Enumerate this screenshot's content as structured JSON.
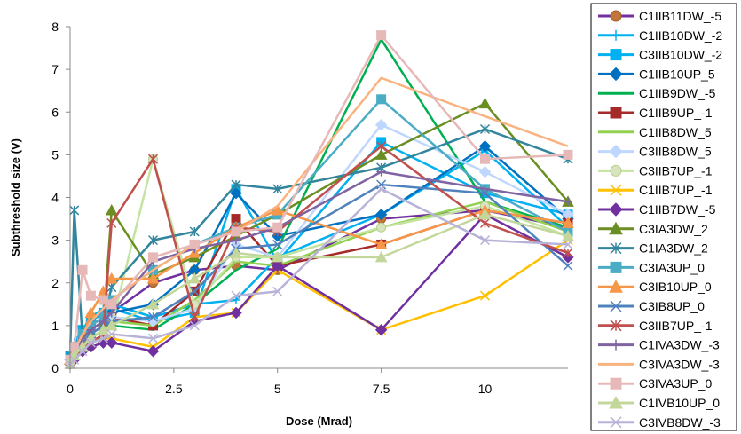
{
  "chart_data": {
    "type": "line",
    "title": "",
    "xlabel": "Dose (Mrad)",
    "ylabel": "Subthreshold size (V)",
    "xlim": [
      0,
      12
    ],
    "ylim": [
      0,
      8
    ],
    "xticks": [
      0,
      2.5,
      5,
      7.5,
      10
    ],
    "xtick_labels": [
      "0",
      "2.5",
      "5",
      "7.5",
      "10"
    ],
    "yticks": [
      0,
      1,
      2,
      3,
      4,
      5,
      6,
      7,
      8
    ],
    "ytick_labels": [
      "0",
      "1",
      "2",
      "3",
      "4",
      "5",
      "6",
      "7",
      "8"
    ],
    "grid": false,
    "legend_position": "right",
    "series": [
      {
        "name": "C1IIB11DW_-5",
        "color": "#7030A0",
        "marker": "circle-orange",
        "x": [
          0,
          0.1,
          0.3,
          0.5,
          0.8,
          1,
          2,
          3,
          4,
          5,
          7.5,
          10,
          12
        ],
        "y": [
          0.3,
          0.5,
          0.8,
          1.0,
          1.2,
          1.3,
          2.0,
          2.3,
          2.4,
          2.3,
          3.5,
          3.7,
          3.3
        ]
      },
      {
        "name": "C1IIB10DW_-2",
        "color": "#00B0F0",
        "marker": "plus",
        "x": [
          0,
          0.1,
          0.3,
          0.5,
          0.8,
          1,
          2,
          3,
          4,
          5,
          7.5,
          10,
          12
        ],
        "y": [
          0.4,
          0.6,
          0.9,
          1.2,
          1.4,
          1.5,
          1.2,
          1.5,
          1.6,
          2.6,
          3.6,
          5.1,
          3.3
        ]
      },
      {
        "name": "C3IIB10DW_-2",
        "color": "#00B0F0",
        "marker": "square",
        "x": [
          0,
          0.1,
          0.3,
          0.5,
          0.8,
          1,
          2,
          3,
          4,
          5,
          7.5,
          10,
          12
        ],
        "y": [
          0.3,
          0.5,
          0.9,
          1.1,
          1.3,
          1.4,
          1.1,
          1.3,
          4.2,
          2.5,
          5.3,
          4.1,
          3.6
        ]
      },
      {
        "name": "C1IIB10UP_5",
        "color": "#0070C0",
        "marker": "diamond",
        "x": [
          0,
          0.1,
          0.3,
          0.5,
          0.8,
          1,
          2,
          3,
          4,
          5,
          7.5,
          10,
          12
        ],
        "y": [
          0.2,
          0.4,
          0.6,
          0.9,
          1.1,
          1.3,
          1.5,
          2.3,
          4.1,
          3.1,
          3.6,
          5.2,
          3.5
        ]
      },
      {
        "name": "C1IIB9DW_-5",
        "color": "#00B050",
        "marker": "none",
        "x": [
          0,
          0.1,
          0.3,
          0.5,
          0.8,
          1,
          2,
          3,
          4,
          5,
          7.5,
          10,
          12
        ],
        "y": [
          0.1,
          0.3,
          0.5,
          0.7,
          0.9,
          1.0,
          0.9,
          1.5,
          2.3,
          2.8,
          7.7,
          3.9,
          3.3
        ]
      },
      {
        "name": "C1IIB9UP_-1",
        "color": "#A52A2A",
        "marker": "square",
        "x": [
          0,
          0.1,
          0.3,
          0.5,
          0.8,
          1,
          2,
          3,
          4,
          5,
          7.5,
          10,
          12
        ],
        "y": [
          0.2,
          0.5,
          0.8,
          1.0,
          1.2,
          1.2,
          1.0,
          1.8,
          3.5,
          2.4,
          2.9,
          3.7,
          3.4
        ]
      },
      {
        "name": "C1IIB8DW_5",
        "color": "#92D050",
        "marker": "none",
        "x": [
          0,
          0.1,
          0.3,
          0.5,
          0.8,
          1,
          2,
          3,
          4,
          5,
          7.5,
          10,
          12
        ],
        "y": [
          0.2,
          0.4,
          0.6,
          0.8,
          1.0,
          1.1,
          1.0,
          1.6,
          2.5,
          2.4,
          3.3,
          3.9,
          3.2
        ]
      },
      {
        "name": "C3IIB8DW_5",
        "color": "#BFD7FF",
        "marker": "diamond-light",
        "x": [
          0,
          0.1,
          0.3,
          0.5,
          0.8,
          1,
          2,
          3,
          4,
          5,
          7.5,
          10,
          12
        ],
        "y": [
          0.2,
          0.4,
          0.7,
          0.9,
          1.1,
          1.2,
          1.1,
          1.4,
          2.9,
          2.6,
          5.7,
          4.6,
          3.6
        ]
      },
      {
        "name": "C3IIB7UP_-1",
        "color": "#C4E3A0",
        "marker": "circle-green",
        "x": [
          0,
          0.1,
          0.3,
          0.5,
          0.8,
          1,
          2,
          3,
          4,
          5,
          7.5,
          10,
          12
        ],
        "y": [
          0.1,
          0.3,
          0.5,
          0.7,
          0.9,
          1.0,
          4.9,
          1.5,
          2.6,
          2.6,
          3.3,
          3.8,
          3.1
        ]
      },
      {
        "name": "C1IIB7UP_-1",
        "color": "#FFC000",
        "marker": "x",
        "x": [
          0,
          0.1,
          0.3,
          0.5,
          0.8,
          1,
          2,
          3,
          4,
          5,
          7.5,
          10,
          12
        ],
        "y": [
          0.1,
          0.3,
          0.5,
          0.6,
          0.7,
          0.7,
          0.5,
          1.2,
          1.3,
          2.3,
          0.9,
          1.7,
          3.0
        ]
      },
      {
        "name": "C1IIB7DW_-5",
        "color": "#7030A0",
        "marker": "diamond-gold",
        "x": [
          0,
          0.1,
          0.3,
          0.5,
          0.8,
          1,
          2,
          3,
          4,
          5,
          7.5,
          10,
          12
        ],
        "y": [
          0.1,
          0.2,
          0.4,
          0.5,
          0.6,
          0.6,
          0.4,
          1.1,
          1.3,
          2.4,
          0.9,
          3.6,
          2.6
        ]
      },
      {
        "name": "C3IA3DW_2",
        "color": "#6B8E23",
        "marker": "triangle",
        "x": [
          0,
          0.1,
          0.3,
          0.5,
          0.8,
          1,
          2,
          3,
          4,
          5,
          7.5,
          10,
          12
        ],
        "y": [
          0.2,
          0.4,
          0.6,
          0.8,
          1.0,
          3.7,
          2.2,
          2.6,
          3.1,
          3.6,
          5.0,
          6.2,
          3.9
        ]
      },
      {
        "name": "C1IA3DW_2",
        "color": "#31859C",
        "marker": "asterisk",
        "x": [
          0,
          0.1,
          0.3,
          0.5,
          0.8,
          1,
          2,
          3,
          4,
          5,
          7.5,
          10,
          12
        ],
        "y": [
          0.3,
          3.7,
          0.7,
          0.9,
          1.1,
          1.9,
          3.0,
          3.2,
          4.3,
          4.2,
          4.7,
          5.6,
          4.9
        ]
      },
      {
        "name": "C3IA3UP_0",
        "color": "#4BACC6",
        "marker": "square",
        "x": [
          0,
          0.1,
          0.3,
          0.5,
          0.8,
          1,
          2,
          3,
          4,
          5,
          7.5,
          10,
          12
        ],
        "y": [
          0.2,
          0.5,
          0.8,
          1.0,
          1.2,
          1.6,
          2.3,
          2.9,
          3.3,
          3.6,
          6.3,
          4.2,
          3.2
        ]
      },
      {
        "name": "C3IB10UP_0",
        "color": "#F79646",
        "marker": "triangle",
        "x": [
          0,
          0.1,
          0.3,
          0.5,
          0.8,
          1,
          2,
          3,
          4,
          5,
          7.5,
          10,
          12
        ],
        "y": [
          0.2,
          0.4,
          0.7,
          1.3,
          1.8,
          2.1,
          2.1,
          2.7,
          3.3,
          3.7,
          2.9,
          3.7,
          3.4
        ]
      },
      {
        "name": "C3IB8UP_0",
        "color": "#4F81BD",
        "marker": "x",
        "x": [
          0,
          0.1,
          0.3,
          0.5,
          0.8,
          1,
          2,
          3,
          4,
          5,
          7.5,
          10,
          12
        ],
        "y": [
          0.2,
          0.4,
          0.6,
          0.8,
          1.0,
          1.1,
          1.2,
          1.8,
          2.8,
          2.9,
          4.3,
          4.1,
          2.4
        ]
      },
      {
        "name": "C3IIB7UP_-1",
        "color": "#C0504D",
        "marker": "x-star",
        "x": [
          0,
          0.1,
          0.3,
          0.5,
          0.8,
          1,
          2,
          3,
          4,
          5,
          7.5,
          10,
          12
        ],
        "y": [
          0.1,
          0.3,
          0.5,
          0.6,
          0.8,
          3.4,
          4.9,
          1.2,
          3.3,
          3.2,
          5.2,
          3.4,
          2.7
        ]
      },
      {
        "name": "C1IVA3DW_-3",
        "color": "#8064A2",
        "marker": "plus",
        "x": [
          0,
          0.1,
          0.3,
          0.5,
          0.8,
          1,
          2,
          3,
          4,
          5,
          7.5,
          10,
          12
        ],
        "y": [
          0.2,
          0.4,
          0.7,
          0.9,
          1.1,
          1.3,
          2.5,
          2.8,
          3.0,
          3.3,
          4.6,
          4.2,
          3.9
        ]
      },
      {
        "name": "C3IVA3DW_-3",
        "color": "#FAB380",
        "marker": "none",
        "x": [
          0,
          0.1,
          0.3,
          0.5,
          0.8,
          1,
          2,
          3,
          4,
          5,
          7.5,
          10,
          12
        ],
        "y": [
          0.2,
          0.4,
          0.8,
          1.1,
          1.4,
          1.6,
          2.3,
          2.9,
          3.2,
          3.8,
          6.8,
          5.9,
          5.2
        ]
      },
      {
        "name": "C3IVA3UP_0",
        "color": "#E6B9B8",
        "marker": "square",
        "x": [
          0,
          0.1,
          0.3,
          0.5,
          0.8,
          1,
          2,
          3,
          4,
          5,
          7.5,
          10,
          12
        ],
        "y": [
          0.2,
          0.5,
          2.3,
          1.7,
          1.6,
          1.5,
          2.6,
          2.9,
          3.2,
          3.3,
          7.8,
          4.9,
          5.0
        ]
      },
      {
        "name": "C1IVB10UP_0",
        "color": "#C4D79B",
        "marker": "triangle",
        "x": [
          0,
          0.1,
          0.3,
          0.5,
          0.8,
          1,
          2,
          3,
          4,
          5,
          7.5,
          10,
          12
        ],
        "y": [
          0.1,
          0.3,
          0.5,
          0.7,
          0.9,
          1.0,
          1.5,
          2.1,
          2.7,
          2.6,
          2.6,
          3.6,
          3.1
        ]
      },
      {
        "name": "C3IVB8DW_-3",
        "color": "#B7B3D8",
        "marker": "x",
        "x": [
          0,
          0.1,
          0.3,
          0.5,
          0.8,
          1,
          2,
          3,
          4,
          5,
          7.5,
          10,
          12
        ],
        "y": [
          0.1,
          0.2,
          0.4,
          0.6,
          0.7,
          0.8,
          0.7,
          1.0,
          1.7,
          1.8,
          4.2,
          3.0,
          2.9
        ]
      }
    ]
  }
}
